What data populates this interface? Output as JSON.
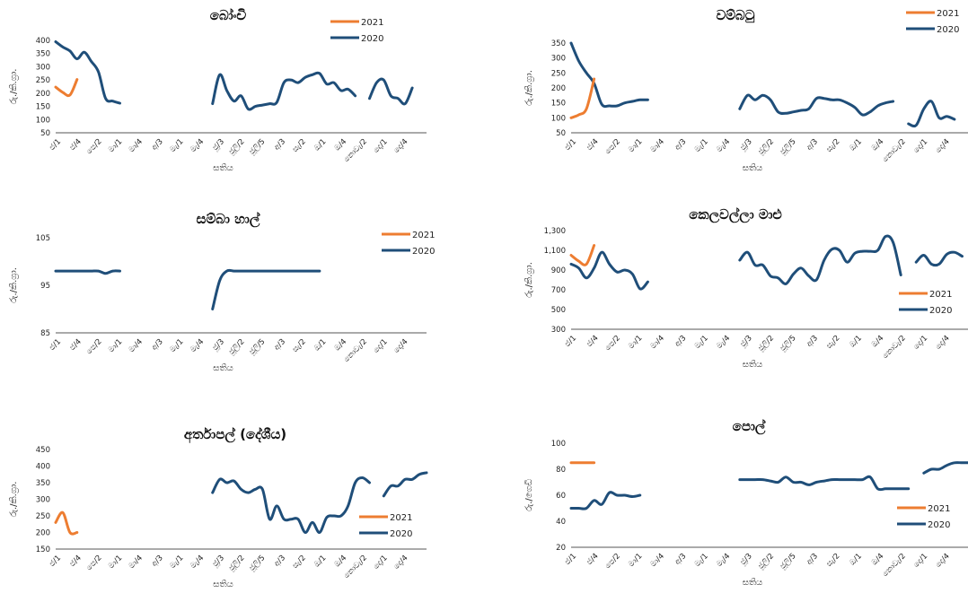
{
  "colors": {
    "s2021": "#ED7D31",
    "s2020": "#1F4E79"
  },
  "x_ticks": [
    "ජ/1",
    "ජ/4",
    "පෙ/2",
    "මා/1",
    "මා/4",
    "අ/3",
    "මැ/1",
    "මැ/4",
    "ජූ/3",
    "ජූලි/2",
    "ජූලි/5",
    "අ/3",
    "සැ/2",
    "ඔ/1",
    "ඔ/4",
    "නොවැ/2",
    "දෙ/1",
    "දෙ/4"
  ],
  "chart_data": [
    {
      "type": "line",
      "title": "බෝංචි",
      "xlabel": "සතිය",
      "ylabel": "රු./කි.ග්‍රා.",
      "ylim": [
        50,
        400
      ],
      "yticks": [
        "50",
        "100",
        "150",
        "200",
        "250",
        "300",
        "350",
        "400"
      ],
      "legend_position": "top-right",
      "series": [
        {
          "name": "2021",
          "values": [
            223,
            203,
            193,
            252,
            null,
            null,
            null,
            null,
            null,
            null,
            null,
            null,
            null,
            null,
            null,
            null,
            null,
            null,
            null,
            null,
            null,
            null,
            null,
            null,
            null,
            null,
            null,
            null,
            null,
            null,
            null,
            null,
            null,
            null,
            null,
            null,
            null,
            null,
            null,
            null,
            null,
            null,
            null,
            null,
            null,
            null,
            null,
            null,
            null,
            null,
            null,
            null
          ]
        },
        {
          "name": "2020",
          "values": [
            395,
            375,
            360,
            330,
            355,
            320,
            280,
            180,
            170,
            162,
            null,
            null,
            null,
            null,
            null,
            null,
            null,
            null,
            null,
            null,
            null,
            null,
            160,
            270,
            210,
            170,
            190,
            140,
            150,
            155,
            160,
            165,
            240,
            250,
            240,
            260,
            270,
            275,
            235,
            240,
            210,
            215,
            190,
            null,
            180,
            240,
            250,
            190,
            180,
            160,
            220,
            null
          ]
        }
      ]
    },
    {
      "type": "line",
      "title": "වම්බටු",
      "xlabel": "සතිය",
      "ylabel": "රු./කි.ග්‍රා.",
      "ylim": [
        50,
        350
      ],
      "yticks": [
        "50",
        "100",
        "150",
        "200",
        "250",
        "300",
        "350"
      ],
      "legend_position": "top-right",
      "series": [
        {
          "name": "2021",
          "values": [
            100,
            110,
            130,
            230,
            null,
            null,
            null,
            null,
            null,
            null,
            null,
            null,
            null,
            null,
            null,
            null,
            null,
            null,
            null,
            null,
            null,
            null,
            null,
            null,
            null,
            null,
            null,
            null,
            null,
            null,
            null,
            null,
            null,
            null,
            null,
            null,
            null,
            null,
            null,
            null,
            null,
            null,
            null,
            null,
            null,
            null,
            null,
            null,
            null,
            null,
            null,
            null
          ]
        },
        {
          "name": "2020",
          "values": [
            350,
            290,
            250,
            215,
            145,
            140,
            140,
            150,
            155,
            160,
            160,
            null,
            null,
            null,
            null,
            null,
            null,
            null,
            null,
            null,
            null,
            null,
            130,
            175,
            160,
            175,
            160,
            120,
            115,
            120,
            125,
            130,
            165,
            165,
            160,
            160,
            150,
            135,
            110,
            120,
            140,
            150,
            155,
            null,
            80,
            75,
            130,
            155,
            100,
            105,
            95,
            null
          ]
        }
      ]
    },
    {
      "type": "line",
      "title": "සම්බා හාල්",
      "xlabel": "සතිය",
      "ylabel": "රු./කි.ග්‍රා.",
      "ylim": [
        85,
        105
      ],
      "yticks": [
        "85",
        "95",
        "105"
      ],
      "legend_position": "top-right",
      "series": [
        {
          "name": "2021",
          "values": []
        },
        {
          "name": "2020",
          "values": [
            98,
            98,
            98,
            98,
            98,
            98,
            98,
            97.5,
            98,
            98,
            null,
            null,
            null,
            null,
            null,
            null,
            null,
            null,
            null,
            null,
            null,
            null,
            90,
            96,
            98,
            98,
            98,
            98,
            98,
            98,
            98,
            98,
            98,
            98,
            98,
            98,
            98,
            98,
            null,
            null,
            null,
            null,
            null,
            null,
            null,
            null,
            null,
            null,
            null,
            null,
            null,
            null
          ]
        }
      ]
    },
    {
      "type": "line",
      "title": "කෙලවල්ලා මාළු",
      "xlabel": "සතිය",
      "ylabel": "රු./කි.ග්‍රා.",
      "ylim": [
        300,
        1300
      ],
      "yticks": [
        "300",
        "500",
        "700",
        "900",
        "1,100",
        "1,300"
      ],
      "legend_position": "right",
      "series": [
        {
          "name": "2021",
          "values": [
            1050,
            990,
            960,
            1150,
            null,
            null,
            null,
            null,
            null,
            null,
            null,
            null,
            null,
            null,
            null,
            null,
            null,
            null,
            null,
            null,
            null,
            null,
            null,
            null,
            null,
            null,
            null,
            null,
            null,
            null,
            null,
            null,
            null,
            null,
            null,
            null,
            null,
            null,
            null,
            null,
            null,
            null,
            null,
            null,
            null,
            null,
            null,
            null,
            null,
            null,
            null,
            null
          ]
        },
        {
          "name": "2020",
          "values": [
            960,
            920,
            820,
            920,
            1080,
            960,
            880,
            900,
            860,
            710,
            780,
            null,
            null,
            null,
            null,
            null,
            null,
            null,
            null,
            null,
            null,
            null,
            1000,
            1080,
            950,
            950,
            840,
            820,
            760,
            860,
            920,
            840,
            800,
            1000,
            1110,
            1100,
            980,
            1070,
            1090,
            1090,
            1100,
            1240,
            1180,
            850,
            null,
            980,
            1050,
            960,
            960,
            1060,
            1080,
            1040
          ]
        }
      ]
    },
    {
      "type": "line",
      "title": "අර්තාපල් (දේශීය)",
      "xlabel": "සතිය",
      "ylabel": "රු./කි.ග්‍රා.",
      "ylim": [
        150,
        450
      ],
      "yticks": [
        "150",
        "200",
        "250",
        "300",
        "350",
        "400",
        "450"
      ],
      "legend_position": "right",
      "series": [
        {
          "name": "2021",
          "values": [
            230,
            260,
            200,
            200,
            null,
            null,
            null,
            null,
            null,
            null,
            null,
            null,
            null,
            null,
            null,
            null,
            null,
            null,
            null,
            null,
            null,
            null,
            null,
            null,
            null,
            null,
            null,
            null,
            null,
            null,
            null,
            null,
            null,
            null,
            null,
            null,
            null,
            null,
            null,
            null,
            null,
            null,
            null,
            null,
            null,
            null,
            null,
            null,
            null,
            null,
            null,
            null
          ]
        },
        {
          "name": "2020",
          "values": [
            null,
            null,
            null,
            null,
            null,
            null,
            null,
            null,
            null,
            null,
            null,
            null,
            null,
            null,
            null,
            null,
            null,
            null,
            null,
            null,
            null,
            null,
            320,
            360,
            350,
            355,
            330,
            320,
            330,
            330,
            240,
            280,
            240,
            240,
            240,
            200,
            230,
            200,
            245,
            250,
            250,
            280,
            350,
            365,
            350,
            null,
            310,
            340,
            340,
            360,
            360,
            375,
            380
          ]
        }
      ]
    },
    {
      "type": "line",
      "title": "පොල්",
      "xlabel": "සතිය",
      "ylabel": "රු./ගෙඩි",
      "ylim": [
        20,
        100
      ],
      "yticks": [
        "20",
        "40",
        "60",
        "80",
        "100"
      ],
      "legend_position": "right",
      "series": [
        {
          "name": "2021",
          "values": [
            85,
            85,
            85,
            85,
            null,
            null,
            null,
            null,
            null,
            null,
            null,
            null,
            null,
            null,
            null,
            null,
            null,
            null,
            null,
            null,
            null,
            null,
            null,
            null,
            null,
            null,
            null,
            null,
            null,
            null,
            null,
            null,
            null,
            null,
            null,
            null,
            null,
            null,
            null,
            null,
            null,
            null,
            null,
            null,
            null,
            null,
            null,
            null,
            null,
            null,
            null,
            null
          ]
        },
        {
          "name": "2020",
          "values": [
            50,
            50,
            50,
            56,
            53,
            62,
            60,
            60,
            59,
            60,
            null,
            null,
            null,
            null,
            null,
            null,
            null,
            null,
            null,
            null,
            null,
            null,
            72,
            72,
            72,
            72,
            71,
            70,
            74,
            70,
            70,
            68,
            70,
            71,
            72,
            72,
            72,
            72,
            72,
            74,
            65,
            65,
            65,
            65,
            65,
            null,
            77,
            80,
            80,
            83,
            85,
            85,
            85
          ]
        }
      ]
    }
  ]
}
